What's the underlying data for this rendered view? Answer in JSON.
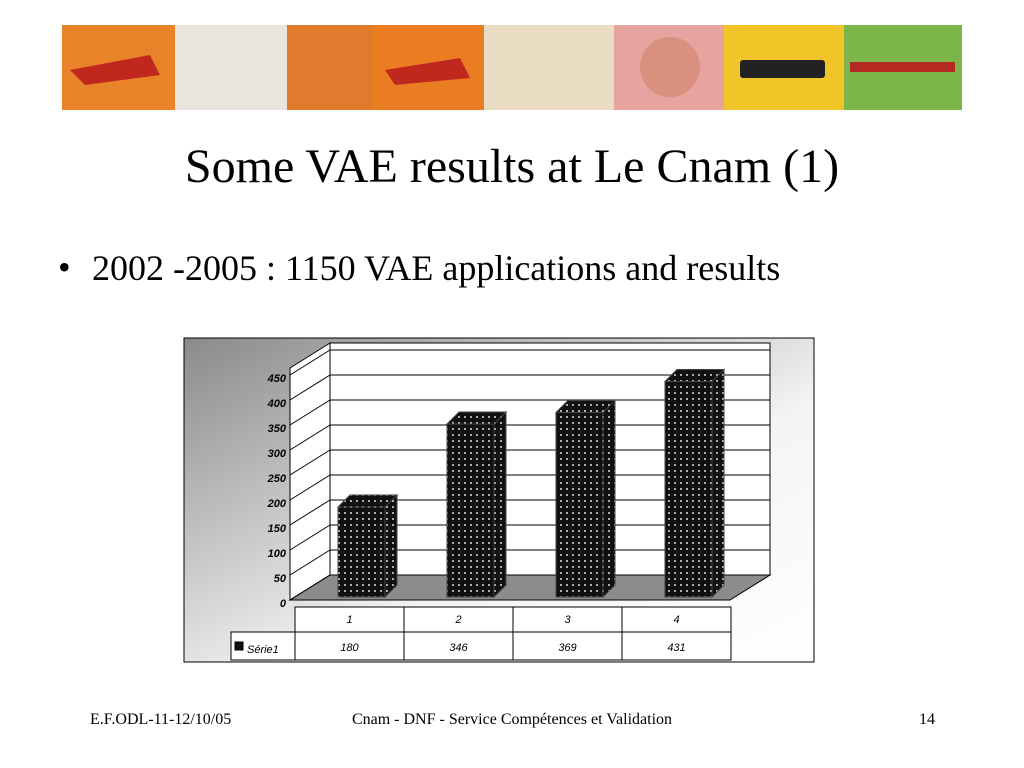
{
  "slide": {
    "title": "Some VAE results at Le Cnam (1)",
    "bullet": "2002 -2005 : 1150 VAE applications and results",
    "footer": {
      "left": "E.F.ODL-11-12/10/05",
      "center": "Cnam - DNF - Service Compétences et Validation",
      "page": "14"
    }
  },
  "chart_data": {
    "type": "bar",
    "categories": [
      "1",
      "2",
      "3",
      "4"
    ],
    "series": [
      {
        "name": "Série1",
        "color": "#111111",
        "values": [
          180,
          346,
          369,
          431
        ]
      }
    ],
    "ylim": [
      0,
      450
    ],
    "yticks": [
      0,
      50,
      100,
      150,
      200,
      250,
      300,
      350,
      400,
      450
    ],
    "grid": true
  }
}
